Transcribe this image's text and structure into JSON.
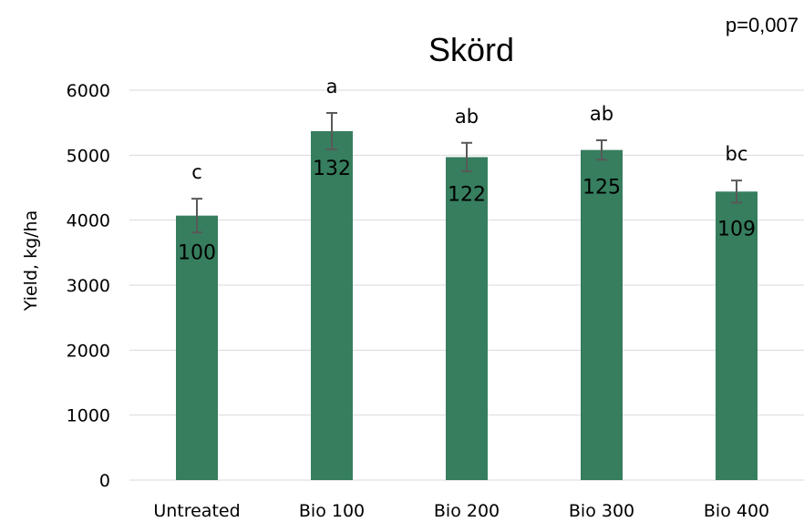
{
  "chart_data": {
    "type": "bar",
    "title": "Skörd",
    "annotation": "p=0,007",
    "ylabel": "Yield, kg/ha",
    "xlabel": "",
    "ylim": [
      0,
      6000
    ],
    "yticks": [
      0,
      1000,
      2000,
      3000,
      4000,
      5000,
      6000
    ],
    "grid": true,
    "bar_color": "#367e5e",
    "categories": [
      "Untreated",
      "Bio 100",
      "Bio 200",
      "Bio 300",
      "Bio 400"
    ],
    "values": [
      4070,
      5370,
      4970,
      5080,
      4440
    ],
    "errors": [
      260,
      280,
      220,
      150,
      170
    ],
    "group_labels": [
      "c",
      "a",
      "ab",
      "ab",
      "bc"
    ],
    "relative_labels": [
      "100",
      "132",
      "122",
      "125",
      "109"
    ]
  }
}
